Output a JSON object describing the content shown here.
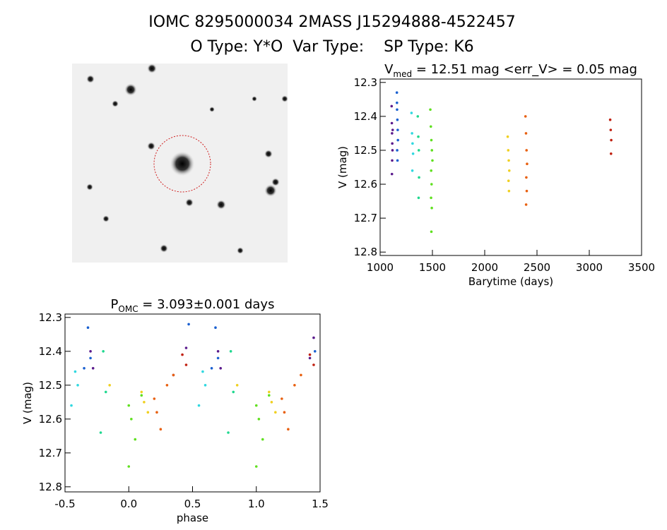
{
  "header": {
    "title": "IOMC 8295000034    2MASS J15294888-4522457",
    "subtitle": "O Type: Y*O  Var Type:    SP Type: K6"
  },
  "chart_data": [
    {
      "type": "scatter",
      "title": {
        "main": "V",
        "sub": "med",
        "rest": " = 12.51 mag <err_V> = 0.05 mag"
      },
      "x_label": "Barytime (days)",
      "y_label": "V (mag)",
      "xlim": [
        1000,
        3500
      ],
      "xticks": [
        1000,
        1500,
        2000,
        2500,
        3000,
        3500
      ],
      "ylim": [
        12.29,
        12.81
      ],
      "yticks": [
        12.3,
        12.4,
        12.5,
        12.6,
        12.7,
        12.8
      ],
      "y_inverted": true,
      "series": [
        {
          "color": "#5a1a8c",
          "x": [
            1110,
            1112,
            1114,
            1116,
            1118,
            1120,
            1115,
            1113
          ],
          "values": [
            12.37,
            12.42,
            12.45,
            12.48,
            12.5,
            12.44,
            12.53,
            12.57
          ]
        },
        {
          "color": "#1a60d0",
          "x": [
            1160,
            1162,
            1165,
            1168,
            1170,
            1163,
            1166,
            1161
          ],
          "values": [
            12.33,
            12.38,
            12.41,
            12.44,
            12.47,
            12.5,
            12.53,
            12.36
          ]
        },
        {
          "color": "#30d8e0",
          "x": [
            1300,
            1305,
            1310,
            1315,
            1308
          ],
          "values": [
            12.39,
            12.45,
            12.48,
            12.51,
            12.56
          ]
        },
        {
          "color": "#20d890",
          "x": [
            1360,
            1365,
            1370,
            1372,
            1368
          ],
          "values": [
            12.4,
            12.46,
            12.5,
            12.58,
            12.64
          ]
        },
        {
          "color": "#60e020",
          "x": [
            1480,
            1485,
            1490,
            1495,
            1500,
            1488,
            1492,
            1487,
            1494,
            1490
          ],
          "values": [
            12.38,
            12.43,
            12.47,
            12.5,
            12.53,
            12.56,
            12.6,
            12.64,
            12.67,
            12.74
          ]
        },
        {
          "color": "#f0d020",
          "x": [
            2220,
            2225,
            2230,
            2235,
            2228,
            2232
          ],
          "values": [
            12.46,
            12.5,
            12.53,
            12.56,
            12.59,
            12.62
          ]
        },
        {
          "color": "#e86010",
          "x": [
            2390,
            2395,
            2400,
            2405,
            2398,
            2402,
            2396
          ],
          "values": [
            12.4,
            12.45,
            12.5,
            12.54,
            12.58,
            12.62,
            12.66
          ]
        },
        {
          "color": "#c02010",
          "x": [
            3200,
            3205,
            3210,
            3208
          ],
          "values": [
            12.41,
            12.44,
            12.47,
            12.51
          ]
        }
      ]
    },
    {
      "type": "scatter",
      "title": {
        "main": "P",
        "sub": "OMC",
        "rest": " = 3.093±0.001 days"
      },
      "x_label": "phase",
      "y_label": "V (mag)",
      "xlim": [
        -0.5,
        1.5
      ],
      "xticks": [
        -0.5,
        {
          "value": 0,
          "label": "0.0"
        },
        0.5,
        {
          "value": 1,
          "label": "1.0"
        },
        1.5
      ],
      "ylim": [
        12.29,
        12.815
      ],
      "yticks": [
        12.3,
        12.4,
        12.5,
        12.6,
        12.7,
        12.8
      ],
      "y_inverted": true,
      "series": [
        {
          "color": "#5a1a8c",
          "x": [
            -0.3,
            -0.28,
            0.7,
            0.72,
            1.45,
            1.42,
            0.45,
            0.35
          ],
          "values": [
            12.4,
            12.45,
            12.4,
            12.45,
            12.36,
            12.42,
            12.39,
            12.47
          ]
        },
        {
          "color": "#1a60d0",
          "x": [
            -0.32,
            -0.3,
            -0.35,
            0.68,
            0.7,
            0.65,
            1.46,
            0.47
          ],
          "values": [
            12.33,
            12.42,
            12.45,
            12.33,
            12.42,
            12.45,
            12.4,
            12.32
          ]
        },
        {
          "color": "#30d8e0",
          "x": [
            -0.42,
            -0.4,
            0.58,
            0.6,
            -0.45,
            0.55
          ],
          "values": [
            12.46,
            12.5,
            12.46,
            12.5,
            12.56,
            12.56
          ]
        },
        {
          "color": "#20d890",
          "x": [
            -0.2,
            -0.18,
            0.8,
            0.82,
            -0.22,
            0.78
          ],
          "values": [
            12.4,
            12.52,
            12.4,
            12.52,
            12.64,
            12.64
          ]
        },
        {
          "color": "#60e020",
          "x": [
            0.0,
            0.02,
            0.05,
            1.0,
            1.02,
            1.05,
            0.1,
            1.1,
            0.0,
            1.0
          ],
          "values": [
            12.56,
            12.6,
            12.66,
            12.56,
            12.6,
            12.66,
            12.53,
            12.53,
            12.74,
            12.74
          ]
        },
        {
          "color": "#f0d020",
          "x": [
            0.1,
            0.12,
            0.15,
            1.1,
            1.12,
            1.15,
            -0.15,
            0.85
          ],
          "values": [
            12.52,
            12.55,
            12.58,
            12.52,
            12.55,
            12.58,
            12.5,
            12.5
          ]
        },
        {
          "color": "#e86010",
          "x": [
            0.2,
            0.22,
            0.25,
            1.2,
            1.22,
            1.25,
            0.3,
            1.3,
            0.35,
            1.35
          ],
          "values": [
            12.54,
            12.58,
            12.63,
            12.54,
            12.58,
            12.63,
            12.5,
            12.5,
            12.47,
            12.47
          ]
        },
        {
          "color": "#c02010",
          "x": [
            0.42,
            0.45,
            1.42,
            1.45
          ],
          "values": [
            12.41,
            12.44,
            12.41,
            12.44
          ]
        }
      ]
    }
  ]
}
